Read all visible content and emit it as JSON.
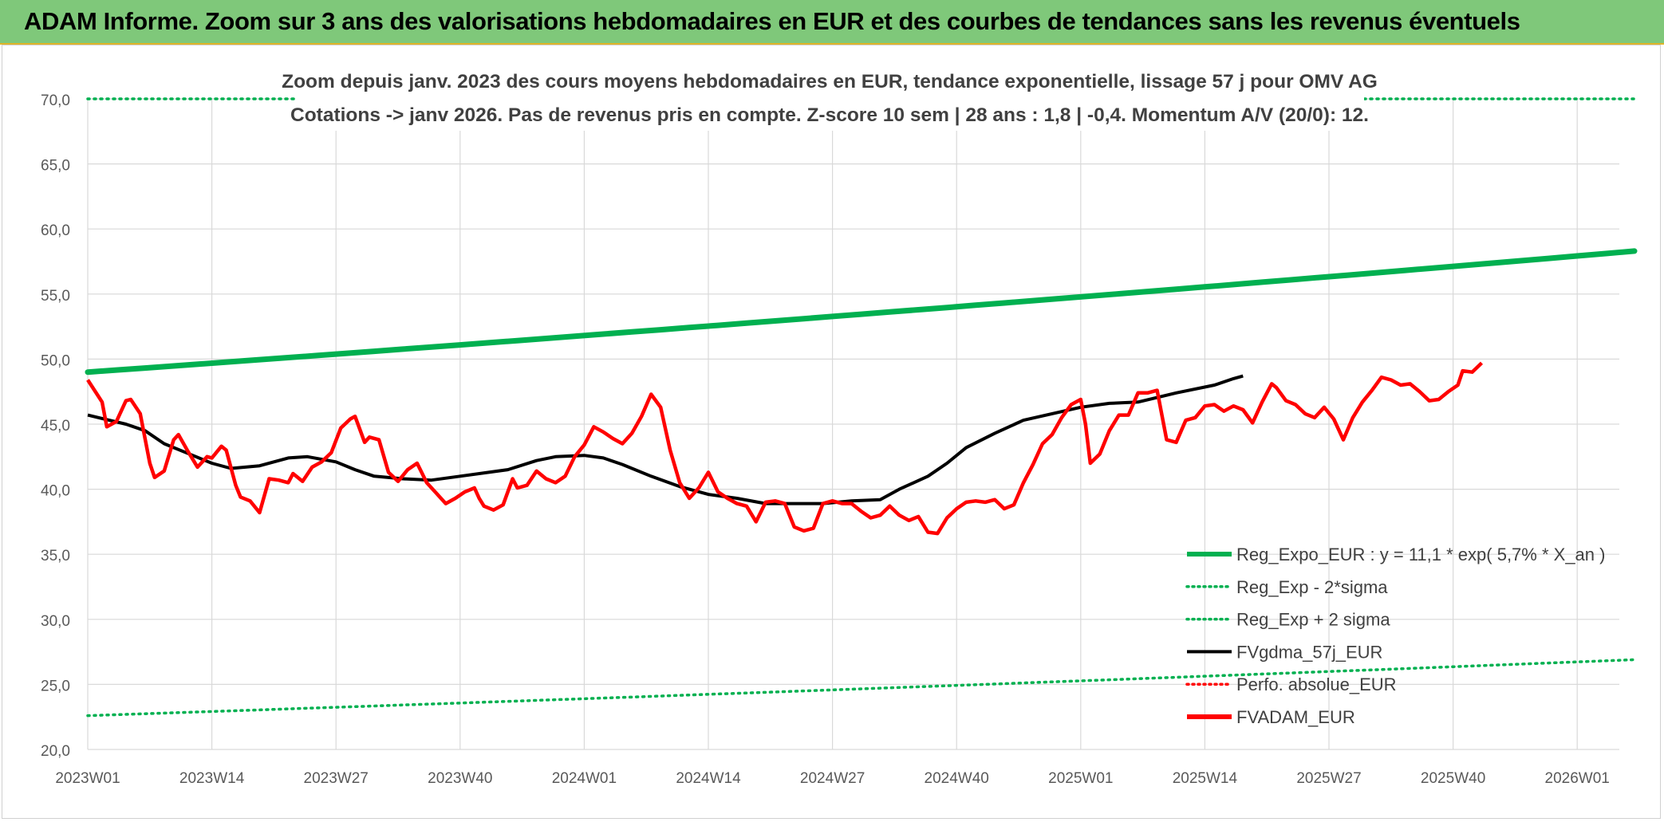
{
  "banner": {
    "title": "ADAM Informe. Zoom sur 3 ans des valorisations hebdomadaires en EUR et des courbes de tendances sans les revenus éventuels"
  },
  "chart_data": {
    "type": "line",
    "title_line1": "Zoom depuis janv. 2023 des cours moyens hebdomadaires en EUR, tendance exponentielle, lissage 57 j pour OMV AG",
    "title_line2": "Cotations -> janv 2026. Pas de revenus pris en compte. Z-score 10 sem | 28 ans : 1,8 | -0,4. Momentum A/V (20/0): 12.",
    "ylim": [
      20,
      70
    ],
    "y_ticks": [
      "20,0",
      "25,0",
      "30,0",
      "35,0",
      "40,0",
      "45,0",
      "50,0",
      "55,0",
      "60,0",
      "65,0",
      "70,0"
    ],
    "x_tick_labels": [
      "2023W01",
      "2023W14",
      "2023W27",
      "2023W40",
      "2024W01",
      "2024W14",
      "2024W27",
      "2024W40",
      "2025W01",
      "2025W14",
      "2025W27",
      "2025W40",
      "2026W01"
    ],
    "x_tick_weeks": [
      0,
      13,
      26,
      39,
      52,
      65,
      78,
      91,
      104,
      117,
      130,
      143,
      156
    ],
    "n_weeks": 162,
    "legend": [
      {
        "name": "Reg_Expo_EUR : y = 11,1 * exp( 5,7% *  X_an )",
        "color": "#00b050",
        "style": "solid-thick"
      },
      {
        "name": "Reg_Exp - 2*sigma",
        "color": "#00b050",
        "style": "dotted"
      },
      {
        "name": "Reg_Exp + 2 sigma",
        "color": "#00b050",
        "style": "dotted"
      },
      {
        "name": "FVgdma_57j_EUR",
        "color": "#000000",
        "style": "solid"
      },
      {
        "name": "Perfo. absolue_EUR",
        "color": "#ff0000",
        "style": "dotted"
      },
      {
        "name": "FVADAM_EUR",
        "color": "#ff0000",
        "style": "solid-thick"
      }
    ],
    "series": [
      {
        "name": "Reg_Expo_EUR",
        "color": "#00b050",
        "start": 49.0,
        "end": 58.3
      },
      {
        "name": "Reg_Exp - 2*sigma",
        "color": "#00b050",
        "start": 22.6,
        "end": 26.9
      },
      {
        "name": "Reg_Exp + 2 sigma",
        "color": "#00b050",
        "start": 70.0,
        "end": 70.0
      },
      {
        "name": "FVgdma_57j_EUR",
        "color": "#000000",
        "points": [
          [
            0,
            45.7
          ],
          [
            8,
            45.0
          ],
          [
            12,
            44.5
          ],
          [
            16,
            43.5
          ],
          [
            22,
            42.6
          ],
          [
            26,
            42.0
          ],
          [
            30,
            41.6
          ],
          [
            36,
            41.8
          ],
          [
            42,
            42.4
          ],
          [
            46,
            42.5
          ],
          [
            52,
            42.1
          ],
          [
            56,
            41.5
          ],
          [
            60,
            41.0
          ],
          [
            66,
            40.8
          ],
          [
            72,
            40.7
          ],
          [
            78,
            41.0
          ],
          [
            84,
            41.3
          ],
          [
            88,
            41.5
          ],
          [
            94,
            42.2
          ],
          [
            98,
            42.5
          ],
          [
            104,
            42.6
          ],
          [
            108,
            42.4
          ],
          [
            112,
            41.9
          ],
          [
            118,
            41.0
          ],
          [
            124,
            40.2
          ],
          [
            130,
            39.6
          ],
          [
            136,
            39.3
          ],
          [
            142,
            38.9
          ],
          [
            148,
            38.9
          ],
          [
            154,
            38.9
          ],
          [
            160,
            39.1
          ],
          [
            166,
            39.2
          ],
          [
            170,
            40.0
          ],
          [
            176,
            41.0
          ],
          [
            180,
            42.0
          ],
          [
            184,
            43.2
          ],
          [
            190,
            44.3
          ],
          [
            196,
            45.3
          ],
          [
            202,
            45.8
          ],
          [
            208,
            46.3
          ],
          [
            214,
            46.6
          ],
          [
            220,
            46.7
          ],
          [
            228,
            47.4
          ],
          [
            236,
            48.0
          ],
          [
            240,
            48.5
          ],
          [
            242,
            48.7
          ]
        ]
      },
      {
        "name": "FVADAM_EUR",
        "color": "#ff0000",
        "points": [
          [
            0,
            48.4
          ],
          [
            3,
            46.7
          ],
          [
            4,
            44.8
          ],
          [
            6,
            45.2
          ],
          [
            8,
            46.8
          ],
          [
            9,
            46.9
          ],
          [
            11,
            45.8
          ],
          [
            13,
            42.0
          ],
          [
            14,
            40.9
          ],
          [
            16,
            41.4
          ],
          [
            18,
            43.8
          ],
          [
            19,
            44.2
          ],
          [
            21,
            42.9
          ],
          [
            23,
            41.7
          ],
          [
            25,
            42.5
          ],
          [
            26,
            42.4
          ],
          [
            28,
            43.3
          ],
          [
            29,
            43.0
          ],
          [
            31,
            40.3
          ],
          [
            32,
            39.4
          ],
          [
            34,
            39.1
          ],
          [
            36,
            38.2
          ],
          [
            38,
            40.8
          ],
          [
            40,
            40.7
          ],
          [
            42,
            40.5
          ],
          [
            43,
            41.2
          ],
          [
            45,
            40.6
          ],
          [
            47,
            41.7
          ],
          [
            49,
            42.1
          ],
          [
            51,
            42.8
          ],
          [
            53,
            44.7
          ],
          [
            55,
            45.4
          ],
          [
            56,
            45.6
          ],
          [
            58,
            43.6
          ],
          [
            59,
            44.0
          ],
          [
            61,
            43.8
          ],
          [
            63,
            41.3
          ],
          [
            65,
            40.6
          ],
          [
            67,
            41.5
          ],
          [
            69,
            42.0
          ],
          [
            71,
            40.5
          ],
          [
            73,
            39.7
          ],
          [
            75,
            38.9
          ],
          [
            77,
            39.3
          ],
          [
            79,
            39.8
          ],
          [
            81,
            40.1
          ],
          [
            82,
            39.3
          ],
          [
            83,
            38.7
          ],
          [
            85,
            38.4
          ],
          [
            87,
            38.8
          ],
          [
            89,
            40.8
          ],
          [
            90,
            40.1
          ],
          [
            92,
            40.3
          ],
          [
            94,
            41.4
          ],
          [
            96,
            40.8
          ],
          [
            98,
            40.5
          ],
          [
            100,
            41.0
          ],
          [
            102,
            42.5
          ],
          [
            104,
            43.4
          ],
          [
            106,
            44.8
          ],
          [
            108,
            44.4
          ],
          [
            110,
            43.9
          ],
          [
            112,
            43.5
          ],
          [
            114,
            44.3
          ],
          [
            116,
            45.6
          ],
          [
            118,
            47.3
          ],
          [
            120,
            46.3
          ],
          [
            122,
            43.0
          ],
          [
            124,
            40.5
          ],
          [
            126,
            39.3
          ],
          [
            128,
            40.1
          ],
          [
            130,
            41.3
          ],
          [
            132,
            39.8
          ],
          [
            134,
            39.3
          ],
          [
            136,
            38.9
          ],
          [
            138,
            38.7
          ],
          [
            140,
            37.5
          ],
          [
            142,
            39.0
          ],
          [
            144,
            39.1
          ],
          [
            146,
            38.9
          ],
          [
            148,
            37.1
          ],
          [
            150,
            36.8
          ],
          [
            152,
            37.0
          ],
          [
            154,
            38.9
          ],
          [
            156,
            39.1
          ],
          [
            158,
            38.9
          ],
          [
            160,
            38.9
          ],
          [
            162,
            38.3
          ],
          [
            164,
            37.8
          ],
          [
            166,
            38.0
          ],
          [
            168,
            38.7
          ],
          [
            170,
            38.0
          ],
          [
            172,
            37.6
          ],
          [
            174,
            37.9
          ],
          [
            176,
            36.7
          ],
          [
            178,
            36.6
          ],
          [
            180,
            37.8
          ],
          [
            182,
            38.5
          ],
          [
            184,
            39.0
          ],
          [
            186,
            39.1
          ],
          [
            188,
            39.0
          ],
          [
            190,
            39.2
          ],
          [
            192,
            38.5
          ],
          [
            194,
            38.8
          ],
          [
            196,
            40.5
          ],
          [
            198,
            41.9
          ],
          [
            200,
            43.5
          ],
          [
            202,
            44.2
          ],
          [
            204,
            45.5
          ],
          [
            206,
            46.5
          ],
          [
            208,
            46.9
          ],
          [
            209,
            45.0
          ],
          [
            210,
            42.0
          ],
          [
            212,
            42.7
          ],
          [
            214,
            44.5
          ],
          [
            216,
            45.7
          ],
          [
            218,
            45.7
          ],
          [
            220,
            47.4
          ],
          [
            222,
            47.4
          ],
          [
            224,
            47.6
          ],
          [
            226,
            43.8
          ],
          [
            228,
            43.6
          ],
          [
            230,
            45.3
          ],
          [
            232,
            45.5
          ],
          [
            234,
            46.4
          ],
          [
            236,
            46.5
          ],
          [
            238,
            46.0
          ],
          [
            240,
            46.4
          ],
          [
            242,
            46.1
          ],
          [
            244,
            45.1
          ],
          [
            246,
            46.7
          ],
          [
            248,
            48.1
          ],
          [
            249,
            47.8
          ],
          [
            251,
            46.8
          ],
          [
            253,
            46.5
          ],
          [
            255,
            45.8
          ],
          [
            257,
            45.5
          ],
          [
            259,
            46.3
          ],
          [
            261,
            45.4
          ],
          [
            263,
            43.8
          ],
          [
            265,
            45.5
          ],
          [
            267,
            46.7
          ],
          [
            269,
            47.6
          ],
          [
            271,
            48.6
          ],
          [
            273,
            48.4
          ],
          [
            275,
            48.0
          ],
          [
            277,
            48.1
          ],
          [
            279,
            47.5
          ],
          [
            281,
            46.8
          ],
          [
            283,
            46.9
          ],
          [
            285,
            47.5
          ],
          [
            287,
            48.0
          ],
          [
            288,
            49.1
          ],
          [
            290,
            49.0
          ],
          [
            292,
            49.7
          ]
        ]
      }
    ]
  }
}
